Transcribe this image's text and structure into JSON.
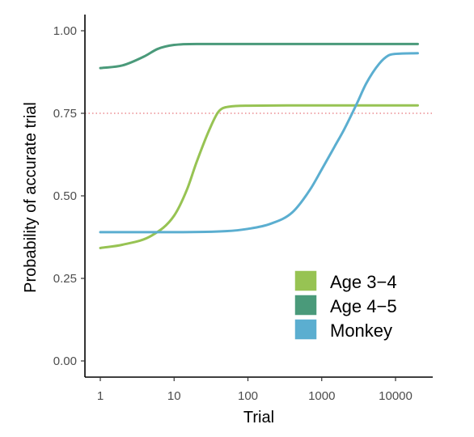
{
  "chart_data": {
    "type": "line",
    "title": "",
    "xlabel": "Trial",
    "ylabel": "Probability of accurate trial",
    "x_scale": "log10",
    "xlim": [
      1,
      20000
    ],
    "ylim": [
      0,
      1
    ],
    "x_ticks": [
      {
        "value": 1,
        "label": "1"
      },
      {
        "value": 10,
        "label": "10"
      },
      {
        "value": 100,
        "label": "100"
      },
      {
        "value": 1000,
        "label": "1000"
      },
      {
        "value": 10000,
        "label": "10000"
      }
    ],
    "y_ticks": [
      {
        "value": 0.0,
        "label": "0.00"
      },
      {
        "value": 0.25,
        "label": "0.25"
      },
      {
        "value": 0.5,
        "label": "0.50"
      },
      {
        "value": 0.75,
        "label": "0.75"
      },
      {
        "value": 1.0,
        "label": "1.00"
      }
    ],
    "reference_line": {
      "y": 0.75,
      "style": "dotted",
      "color": "#e8737a"
    },
    "grid": false,
    "legend_position": "bottom-right",
    "series": [
      {
        "name": "Age 3−4",
        "color": "#97c353",
        "points": [
          [
            1,
            0.342
          ],
          [
            2,
            0.352
          ],
          [
            5,
            0.38
          ],
          [
            10,
            0.44
          ],
          [
            15,
            0.52
          ],
          [
            20,
            0.6
          ],
          [
            30,
            0.7
          ],
          [
            40,
            0.755
          ],
          [
            55,
            0.77
          ],
          [
            100,
            0.773
          ],
          [
            1000,
            0.774
          ],
          [
            20000,
            0.774
          ]
        ]
      },
      {
        "name": "Age 4−5",
        "color": "#4a9a7a",
        "points": [
          [
            1,
            0.887
          ],
          [
            2,
            0.895
          ],
          [
            4,
            0.923
          ],
          [
            6,
            0.945
          ],
          [
            10,
            0.957
          ],
          [
            20,
            0.96
          ],
          [
            100,
            0.96
          ],
          [
            1000,
            0.96
          ],
          [
            20000,
            0.96
          ]
        ]
      },
      {
        "name": "Monkey",
        "color": "#5baed0",
        "points": [
          [
            1,
            0.39
          ],
          [
            10,
            0.39
          ],
          [
            50,
            0.393
          ],
          [
            100,
            0.4
          ],
          [
            200,
            0.415
          ],
          [
            400,
            0.45
          ],
          [
            700,
            0.52
          ],
          [
            1000,
            0.58
          ],
          [
            1500,
            0.65
          ],
          [
            2000,
            0.7
          ],
          [
            3000,
            0.78
          ],
          [
            4000,
            0.84
          ],
          [
            6000,
            0.9
          ],
          [
            8000,
            0.925
          ],
          [
            10000,
            0.93
          ],
          [
            20000,
            0.932
          ]
        ]
      }
    ]
  }
}
